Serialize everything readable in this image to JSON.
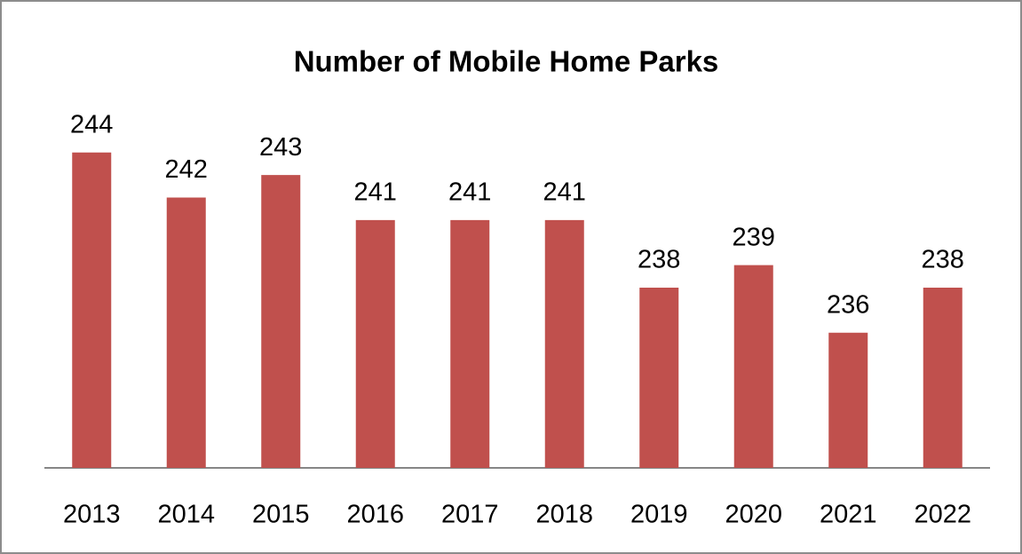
{
  "chart_data": {
    "type": "bar",
    "title": "Number of Mobile Home Parks",
    "categories": [
      "2013",
      "2014",
      "2015",
      "2016",
      "2017",
      "2018",
      "2019",
      "2020",
      "2021",
      "2022"
    ],
    "values": [
      244,
      242,
      243,
      241,
      241,
      241,
      238,
      239,
      236,
      238
    ],
    "color": "#c0504d",
    "ylim": [
      230,
      246
    ]
  }
}
